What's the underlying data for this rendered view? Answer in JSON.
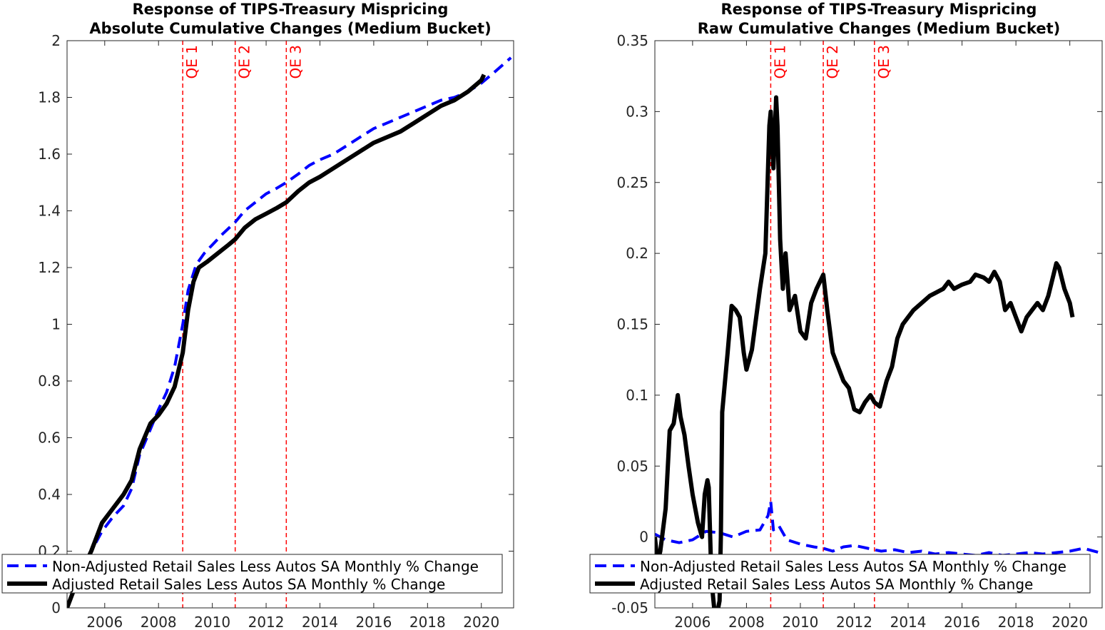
{
  "chart_data": [
    {
      "type": "line",
      "title": "Response of TIPS-Treasury Mispricing",
      "subtitle": "Absolute Cumulative Changes (Medium Bucket)",
      "xlabel": "",
      "ylabel": "",
      "xlim": [
        2004.6,
        2021.2
      ],
      "ylim": [
        0,
        2
      ],
      "xticks": [
        2006,
        2008,
        2010,
        2012,
        2014,
        2016,
        2018,
        2020
      ],
      "yticks": [
        0,
        0.2,
        0.4,
        0.6,
        0.8,
        1,
        1.2,
        1.4,
        1.6,
        1.8,
        2
      ],
      "ytick_labels": [
        "0",
        "0.2",
        "0.4",
        "0.6",
        "0.8",
        "1",
        "1.2",
        "1.4",
        "1.6",
        "1.8",
        "2"
      ],
      "grid": false,
      "legend_position": "bottom-left",
      "event_lines": [
        {
          "label": "QE 1",
          "x": 2008.9
        },
        {
          "label": "QE 2",
          "x": 2010.85
        },
        {
          "label": "QE 3",
          "x": 2012.75
        }
      ],
      "series": [
        {
          "name": "Non-Adjusted Retail Sales Less Autos SA Monthly % Change",
          "style": "dashed",
          "color": "#0000ff",
          "x": [
            2004.6,
            2005.0,
            2005.5,
            2005.9,
            2006.3,
            2006.7,
            2007.0,
            2007.3,
            2007.7,
            2008.0,
            2008.3,
            2008.6,
            2008.9,
            2009.1,
            2009.4,
            2009.7,
            2010.0,
            2010.4,
            2010.85,
            2011.2,
            2011.6,
            2012.0,
            2012.4,
            2012.75,
            2013.2,
            2013.6,
            2014.0,
            2014.5,
            2015.0,
            2015.5,
            2016.0,
            2016.5,
            2017.0,
            2017.5,
            2018.0,
            2018.5,
            2019.0,
            2019.5,
            2020.0,
            2020.5,
            2021.1
          ],
          "y": [
            0.0,
            0.1,
            0.2,
            0.27,
            0.32,
            0.36,
            0.42,
            0.54,
            0.63,
            0.7,
            0.76,
            0.85,
            1.0,
            1.12,
            1.21,
            1.25,
            1.28,
            1.32,
            1.36,
            1.4,
            1.43,
            1.46,
            1.48,
            1.5,
            1.53,
            1.56,
            1.58,
            1.6,
            1.63,
            1.66,
            1.69,
            1.71,
            1.73,
            1.75,
            1.77,
            1.79,
            1.8,
            1.82,
            1.85,
            1.89,
            1.94
          ]
        },
        {
          "name": "Adjusted Retail Sales Less Autos SA Monthly % Change",
          "style": "solid",
          "color": "#000000",
          "x": [
            2004.6,
            2005.0,
            2005.5,
            2005.9,
            2006.3,
            2006.7,
            2007.0,
            2007.3,
            2007.7,
            2008.0,
            2008.3,
            2008.6,
            2008.9,
            2009.1,
            2009.3,
            2009.5,
            2009.8,
            2010.2,
            2010.6,
            2010.85,
            2011.2,
            2011.6,
            2012.0,
            2012.4,
            2012.75,
            2013.2,
            2013.6,
            2014.0,
            2014.5,
            2015.0,
            2015.5,
            2016.0,
            2016.5,
            2017.0,
            2017.5,
            2018.0,
            2018.5,
            2019.0,
            2019.5,
            2020.0,
            2020.1
          ],
          "y": [
            0.0,
            0.1,
            0.2,
            0.3,
            0.35,
            0.4,
            0.45,
            0.56,
            0.65,
            0.68,
            0.72,
            0.78,
            0.9,
            1.05,
            1.15,
            1.2,
            1.22,
            1.25,
            1.28,
            1.3,
            1.34,
            1.37,
            1.39,
            1.41,
            1.43,
            1.47,
            1.5,
            1.52,
            1.55,
            1.58,
            1.61,
            1.64,
            1.66,
            1.68,
            1.71,
            1.74,
            1.77,
            1.79,
            1.82,
            1.86,
            1.88
          ]
        }
      ]
    },
    {
      "type": "line",
      "title": "Response of TIPS-Treasury Mispricing",
      "subtitle": "Raw Cumulative Changes (Medium Bucket)",
      "xlabel": "",
      "ylabel": "",
      "xlim": [
        2004.6,
        2021.2
      ],
      "ylim": [
        -0.05,
        0.35
      ],
      "xticks": [
        2006,
        2008,
        2010,
        2012,
        2014,
        2016,
        2018,
        2020
      ],
      "yticks": [
        -0.05,
        0,
        0.05,
        0.1,
        0.15,
        0.2,
        0.25,
        0.3,
        0.35
      ],
      "ytick_labels": [
        "-0.05",
        "0",
        "0.05",
        "0.1",
        "0.15",
        "0.2",
        "0.25",
        "0.3",
        "0.35"
      ],
      "grid": false,
      "legend_position": "bottom-left",
      "event_lines": [
        {
          "label": "QE 1",
          "x": 2008.9
        },
        {
          "label": "QE 2",
          "x": 2010.85
        },
        {
          "label": "QE 3",
          "x": 2012.75
        }
      ],
      "series": [
        {
          "name": "Non-Adjusted Retail Sales Less Autos SA Monthly % Change",
          "style": "dashed",
          "color": "#0000ff",
          "x": [
            2004.6,
            2005.0,
            2005.5,
            2006.0,
            2006.5,
            2007.0,
            2007.5,
            2008.0,
            2008.5,
            2008.8,
            2008.9,
            2009.0,
            2009.2,
            2009.5,
            2010.0,
            2010.5,
            2010.85,
            2011.2,
            2011.6,
            2012.0,
            2012.5,
            2013.0,
            2013.5,
            2014.0,
            2014.5,
            2015.0,
            2015.5,
            2016.0,
            2016.5,
            2017.0,
            2017.5,
            2018.0,
            2018.5,
            2019.0,
            2019.5,
            2020.0,
            2020.5,
            2021.1
          ],
          "y": [
            0.002,
            -0.002,
            -0.004,
            -0.002,
            0.004,
            0.003,
            0.0,
            0.004,
            0.005,
            0.015,
            0.025,
            0.005,
            0.008,
            -0.002,
            -0.005,
            -0.007,
            -0.008,
            -0.01,
            -0.007,
            -0.006,
            -0.008,
            -0.01,
            -0.009,
            -0.011,
            -0.01,
            -0.012,
            -0.011,
            -0.012,
            -0.013,
            -0.011,
            -0.013,
            -0.012,
            -0.011,
            -0.012,
            -0.011,
            -0.01,
            -0.008,
            -0.011
          ]
        },
        {
          "name": "Adjusted Retail Sales Less Autos SA Monthly % Change",
          "style": "solid",
          "color": "#000000",
          "x": [
            2004.6,
            2004.7,
            2004.8,
            2005.0,
            2005.15,
            2005.3,
            2005.45,
            2005.55,
            2005.7,
            2005.85,
            2006.0,
            2006.2,
            2006.35,
            2006.45,
            2006.55,
            2006.6,
            2006.7,
            2006.85,
            2007.0,
            2007.05,
            2007.1,
            2007.3,
            2007.45,
            2007.6,
            2007.75,
            2007.9,
            2008.0,
            2008.2,
            2008.5,
            2008.7,
            2008.85,
            2008.9,
            2009.0,
            2009.1,
            2009.15,
            2009.25,
            2009.35,
            2009.45,
            2009.6,
            2009.8,
            2010.0,
            2010.2,
            2010.4,
            2010.6,
            2010.85,
            2011.0,
            2011.2,
            2011.4,
            2011.6,
            2011.8,
            2012.0,
            2012.2,
            2012.4,
            2012.6,
            2012.75,
            2012.95,
            2013.2,
            2013.4,
            2013.6,
            2013.8,
            2014.0,
            2014.2,
            2014.5,
            2014.8,
            2015.0,
            2015.3,
            2015.5,
            2015.7,
            2016.0,
            2016.3,
            2016.5,
            2016.8,
            2017.0,
            2017.2,
            2017.4,
            2017.6,
            2017.8,
            2018.0,
            2018.2,
            2018.4,
            2018.6,
            2018.8,
            2019.0,
            2019.2,
            2019.5,
            2019.6,
            2019.8,
            2020.0,
            2020.1
          ],
          "y": [
            0.0,
            -0.018,
            -0.01,
            0.02,
            0.075,
            0.08,
            0.1,
            0.085,
            0.072,
            0.05,
            0.03,
            0.01,
            0.0,
            0.03,
            0.04,
            0.035,
            -0.03,
            -0.06,
            -0.045,
            0.0,
            0.088,
            0.13,
            0.163,
            0.16,
            0.155,
            0.13,
            0.118,
            0.132,
            0.175,
            0.2,
            0.29,
            0.3,
            0.26,
            0.31,
            0.29,
            0.21,
            0.175,
            0.2,
            0.16,
            0.17,
            0.145,
            0.14,
            0.165,
            0.175,
            0.185,
            0.16,
            0.13,
            0.12,
            0.11,
            0.105,
            0.09,
            0.088,
            0.095,
            0.1,
            0.095,
            0.092,
            0.11,
            0.12,
            0.14,
            0.15,
            0.155,
            0.16,
            0.165,
            0.17,
            0.172,
            0.175,
            0.18,
            0.175,
            0.178,
            0.18,
            0.185,
            0.183,
            0.18,
            0.187,
            0.18,
            0.16,
            0.165,
            0.155,
            0.145,
            0.155,
            0.16,
            0.165,
            0.16,
            0.17,
            0.193,
            0.19,
            0.175,
            0.165,
            0.155
          ]
        }
      ]
    }
  ]
}
